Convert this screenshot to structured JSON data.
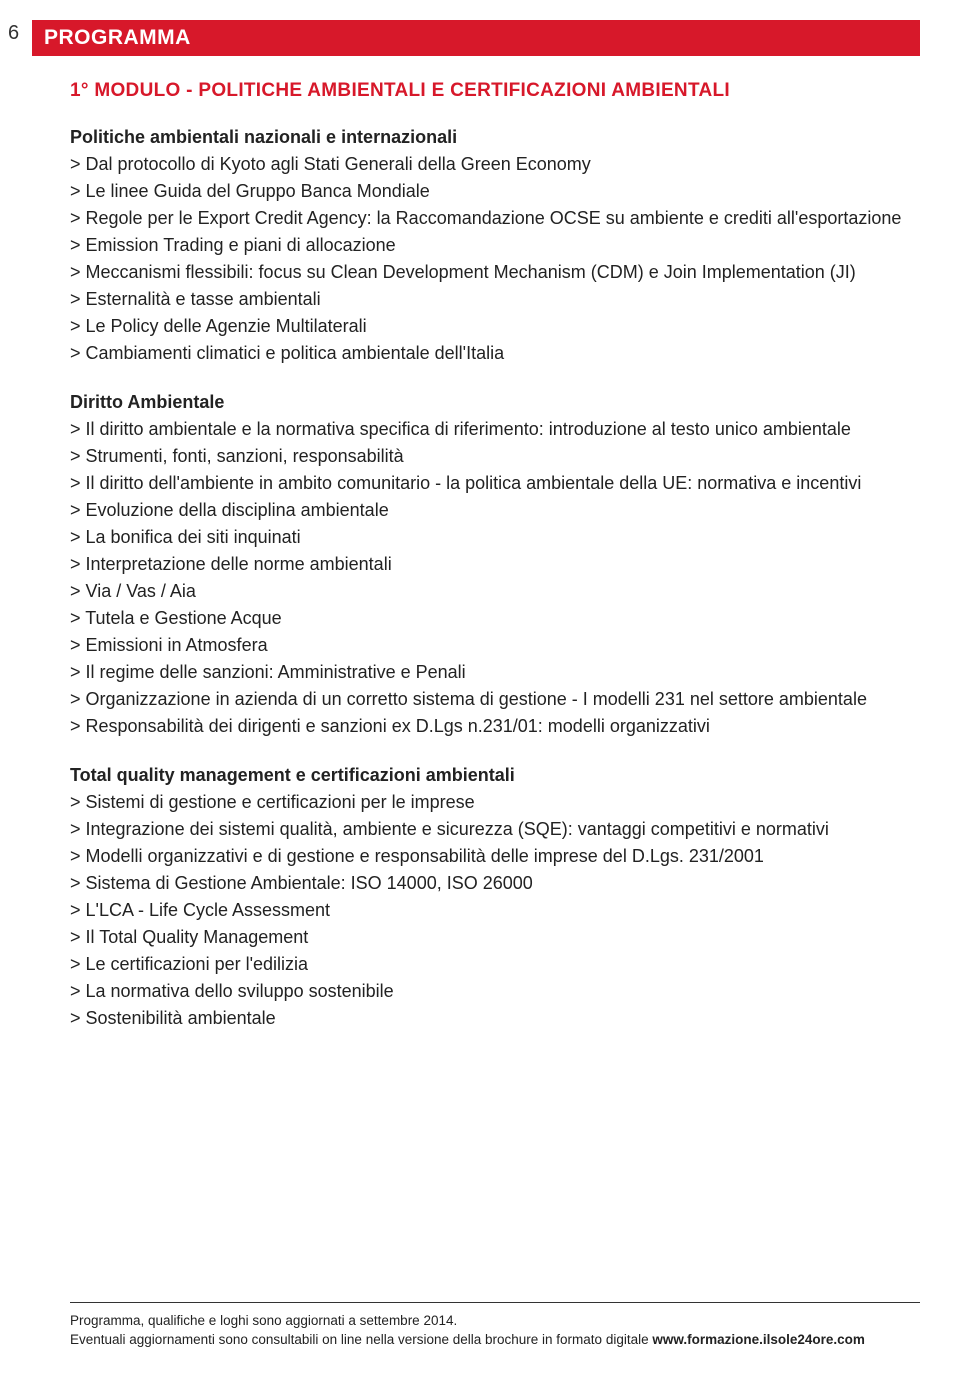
{
  "page_number": "6",
  "header_bar": "PROGRAMMA",
  "module_title": "1° MODULO - POLITICHE AMBIENTALI E CERTIFICAZIONI AMBIENTALI",
  "sections": [
    {
      "heading": "Politiche ambientali nazionali e internazionali",
      "items": [
        "> Dal protocollo di Kyoto agli Stati Generali della Green Economy",
        "> Le linee Guida del Gruppo Banca Mondiale",
        "> Regole per le Export Credit Agency: la Raccomandazione OCSE su ambiente e crediti all'esportazione",
        "> Emission Trading e piani di allocazione",
        "> Meccanismi flessibili: focus su Clean Development Mechanism (CDM) e Join Implementation (JI)",
        "> Esternalità e tasse ambientali",
        "> Le Policy delle Agenzie Multilaterali",
        "> Cambiamenti climatici e politica ambientale dell'Italia"
      ]
    },
    {
      "heading": "Diritto Ambientale",
      "items": [
        "> Il diritto ambientale e la normativa specifica di riferimento: introduzione al testo unico ambientale",
        "> Strumenti, fonti, sanzioni, responsabilità",
        "> Il diritto dell'ambiente in ambito comunitario - la politica ambientale della UE: normativa e incentivi",
        "> Evoluzione della disciplina ambientale",
        "> La bonifica dei siti inquinati",
        "> Interpretazione delle norme ambientali",
        "> Via / Vas / Aia",
        "> Tutela e Gestione Acque",
        "> Emissioni in Atmosfera",
        "> Il regime delle sanzioni: Amministrative e Penali",
        "> Organizzazione in azienda di un corretto sistema di gestione - I modelli 231 nel settore ambientale",
        "> Responsabilità dei dirigenti e sanzioni ex D.Lgs n.231/01: modelli organizzativi"
      ]
    },
    {
      "heading": "Total quality management e certificazioni ambientali",
      "items": [
        "> Sistemi di gestione e certificazioni per le imprese",
        "> Integrazione dei sistemi qualità, ambiente e sicurezza (SQE): vantaggi competitivi e normativi",
        "> Modelli organizzativi e di gestione e responsabilità delle imprese del D.Lgs. 231/2001",
        "> Sistema di Gestione Ambientale: ISO 14000, ISO 26000",
        "> L'LCA - Life Cycle Assessment",
        "> Il Total Quality Management",
        "> Le certificazioni per l'edilizia",
        "> La normativa dello sviluppo sostenibile",
        ">  Sostenibilità ambientale"
      ]
    }
  ],
  "footer": {
    "line1": "Programma, qualifiche e loghi sono aggiornati a settembre 2014.",
    "line2_prefix": "Eventuali aggiornamenti sono consultabili on line nella versione della brochure in formato digitale ",
    "line2_bold": "www.formazione.ilsole24ore.com"
  },
  "colors": {
    "red": "#d7182a",
    "text": "#222222",
    "background": "#ffffff"
  }
}
